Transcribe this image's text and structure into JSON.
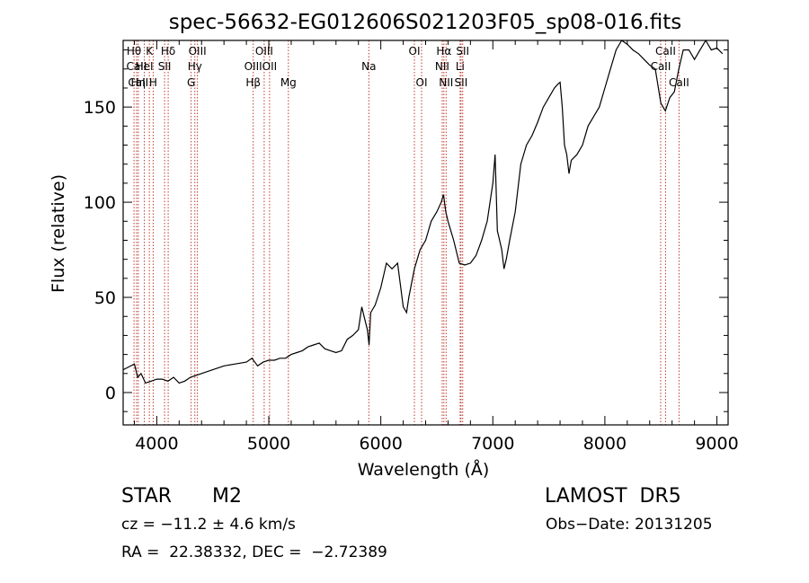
{
  "chart_data": {
    "type": "line",
    "title": "spec-56632-EG012606S021203F05_sp08-016.fits",
    "xlabel": "Wavelength (Å)",
    "ylabel": "Flux (relative)",
    "xlim": [
      3700,
      9100
    ],
    "ylim": [
      -17,
      185
    ],
    "x_ticks": [
      4000,
      5000,
      6000,
      7000,
      8000,
      9000
    ],
    "y_ticks": [
      0,
      50,
      100,
      150
    ],
    "grid": false,
    "series": [
      {
        "x": [
          3700,
          3800,
          3830,
          3860,
          3900,
          3950,
          4000,
          4050,
          4100,
          4150,
          4200,
          4250,
          4300,
          4400,
          4500,
          4600,
          4700,
          4800,
          4850,
          4900,
          4950,
          5000,
          5050,
          5100,
          5150,
          5200,
          5250,
          5300,
          5350,
          5400,
          5450,
          5500,
          5550,
          5600,
          5650,
          5700,
          5750,
          5800,
          5830,
          5850,
          5880,
          5895,
          5910,
          5950,
          6000,
          6050,
          6100,
          6150,
          6200,
          6230,
          6250,
          6300,
          6350,
          6400,
          6450,
          6500,
          6540,
          6560,
          6580,
          6600,
          6650,
          6700,
          6750,
          6800,
          6850,
          6900,
          6950,
          7000,
          7020,
          7040,
          7060,
          7080,
          7100,
          7120,
          7150,
          7200,
          7250,
          7300,
          7350,
          7400,
          7450,
          7500,
          7550,
          7580,
          7600,
          7620,
          7640,
          7660,
          7680,
          7700,
          7750,
          7800,
          7850,
          7900,
          7950,
          8000,
          8050,
          8100,
          8150,
          8200,
          8250,
          8300,
          8350,
          8400,
          8450,
          8500,
          8540,
          8580,
          8620,
          8660,
          8700,
          8750,
          8800,
          8850,
          8900,
          8950,
          9000,
          9050
        ],
        "y": [
          12,
          15,
          8,
          10,
          5,
          6,
          7,
          7,
          6,
          8,
          5,
          6,
          8,
          10,
          12,
          14,
          15,
          16,
          18,
          14,
          16,
          17,
          17,
          18,
          18,
          20,
          21,
          22,
          24,
          25,
          26,
          23,
          22,
          21,
          22,
          28,
          30,
          33,
          45,
          40,
          33,
          25,
          42,
          46,
          55,
          68,
          65,
          68,
          45,
          42,
          50,
          65,
          75,
          80,
          90,
          95,
          100,
          104,
          95,
          90,
          80,
          68,
          67,
          68,
          72,
          80,
          90,
          110,
          125,
          85,
          80,
          75,
          65,
          70,
          80,
          95,
          120,
          130,
          135,
          142,
          150,
          155,
          160,
          162,
          163,
          150,
          130,
          125,
          115,
          122,
          125,
          130,
          140,
          145,
          150,
          160,
          170,
          180,
          185,
          183,
          180,
          178,
          175,
          172,
          170,
          152,
          148,
          155,
          158,
          170,
          180,
          180,
          175,
          180,
          185,
          180,
          181,
          178
        ]
      }
    ],
    "lines": [
      {
        "w": 3797,
        "label": "Hθ",
        "row": 0
      },
      {
        "w": 3934,
        "label": "K",
        "row": 0
      },
      {
        "w": 4102,
        "label": "Hδ",
        "row": 0
      },
      {
        "w": 4363,
        "label": "OIII",
        "row": 0
      },
      {
        "w": 4959,
        "label": "OIII",
        "row": 0
      },
      {
        "w": 6300,
        "label": "OI",
        "row": 0
      },
      {
        "w": 6563,
        "label": "Hα",
        "row": 0
      },
      {
        "w": 6731,
        "label": "SII",
        "row": 0
      },
      {
        "w": 8542,
        "label": "CaII",
        "row": 0
      },
      {
        "w": 3820,
        "label": "CaII",
        "row": 1
      },
      {
        "w": 3889,
        "label": "HeI",
        "row": 1
      },
      {
        "w": 4070,
        "label": "SII",
        "row": 1
      },
      {
        "w": 4340,
        "label": "Hγ",
        "row": 1
      },
      {
        "w": 4861,
        "label": "OIII",
        "row": 1
      },
      {
        "w": 5007,
        "label": "OII",
        "row": 1
      },
      {
        "w": 6548,
        "label": "NII",
        "row": 1
      },
      {
        "w": 6708,
        "label": "Li",
        "row": 1
      },
      {
        "w": 8498,
        "label": "CaII",
        "row": 1
      },
      {
        "w": 3835,
        "label": "CaII",
        "row": 2
      },
      {
        "w": 3835,
        "label": "Hη",
        "row": 2
      },
      {
        "w": 3968,
        "label": "H",
        "row": 2
      },
      {
        "w": 4307,
        "label": "G",
        "row": 2
      },
      {
        "w": 4861,
        "label": "Hβ",
        "row": 2
      },
      {
        "w": 5175,
        "label": "Mg",
        "row": 2
      },
      {
        "w": 5893,
        "label": "Na",
        "row": 1
      },
      {
        "w": 6364,
        "label": "OI",
        "row": 2
      },
      {
        "w": 6583,
        "label": "NII",
        "row": 2
      },
      {
        "w": 6716,
        "label": "SII",
        "row": 2
      },
      {
        "w": 8662,
        "label": "CaII",
        "row": 2
      }
    ]
  },
  "info": {
    "object_class": "STAR",
    "subclass": "M2",
    "survey": "LAMOST  DR5",
    "redshift": "cz = −11.2 ± 4.6 km/s",
    "obs_date": "Obs−Date: 20131205",
    "coords": "RA =  22.38332, DEC =  −2.72389"
  },
  "colors": {
    "spectrum": "#000000",
    "lines": "#c0392b",
    "axes": "#000000"
  }
}
